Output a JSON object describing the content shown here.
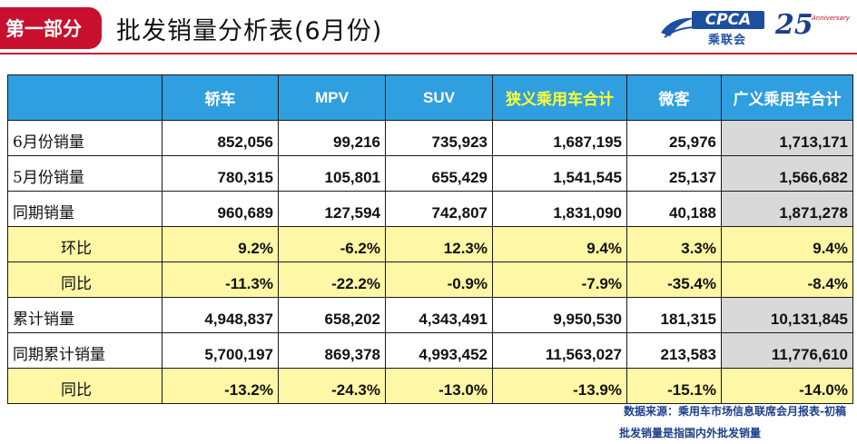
{
  "header": {
    "section_tag": "第一部分",
    "title": "批发销量分析表(6月份)",
    "logo_cpca": "CPCA",
    "logo_cpca_sub": "乘联会",
    "logo_anniv": "25",
    "logo_anniv_caption": "Anniversary"
  },
  "table": {
    "columns": [
      "",
      "轿车",
      "MPV",
      "SUV",
      "狭义乘用车合计",
      "微客",
      "广义乘用车合计"
    ],
    "rows": [
      {
        "label": "6月份销量",
        "values": [
          "852,056",
          "99,216",
          "735,923",
          "1,687,195",
          "25,976",
          "1,713,171"
        ]
      },
      {
        "label": "5月份销量",
        "values": [
          "780,315",
          "105,801",
          "655,429",
          "1,541,545",
          "25,137",
          "1,566,682"
        ]
      },
      {
        "label": "同期销量",
        "values": [
          "960,689",
          "127,594",
          "742,807",
          "1,831,090",
          "40,188",
          "1,871,278"
        ]
      },
      {
        "label": "环比",
        "values": [
          "9.2%",
          "-6.2%",
          "12.3%",
          "9.4%",
          "3.3%",
          "9.4%"
        ]
      },
      {
        "label": "同比",
        "values": [
          "-11.3%",
          "-22.2%",
          "-0.9%",
          "-7.9%",
          "-35.4%",
          "-8.4%"
        ]
      },
      {
        "label": "累计销量",
        "values": [
          "4,948,837",
          "658,202",
          "4,343,491",
          "9,950,530",
          "181,315",
          "10,131,845"
        ]
      },
      {
        "label": "同期累计销量",
        "values": [
          "5,700,197",
          "869,378",
          "4,993,452",
          "11,563,027",
          "213,583",
          "11,776,610"
        ]
      },
      {
        "label": "同比",
        "values": [
          "-13.2%",
          "-24.3%",
          "-13.0%",
          "-13.9%",
          "-15.1%",
          "-14.0%"
        ]
      }
    ]
  },
  "footnotes": {
    "source": "数据来源：乘用车市场信息联席会月报表-初稿",
    "definition": "批发销量是指国内外批发销量"
  },
  "colors": {
    "brand_red": "#c8102e",
    "header_blue": "#2f9fe0",
    "highlight_yellow": "#fdf7a6",
    "header_highlight_text": "#ffff33",
    "summary_gray": "#d9d9d9"
  }
}
